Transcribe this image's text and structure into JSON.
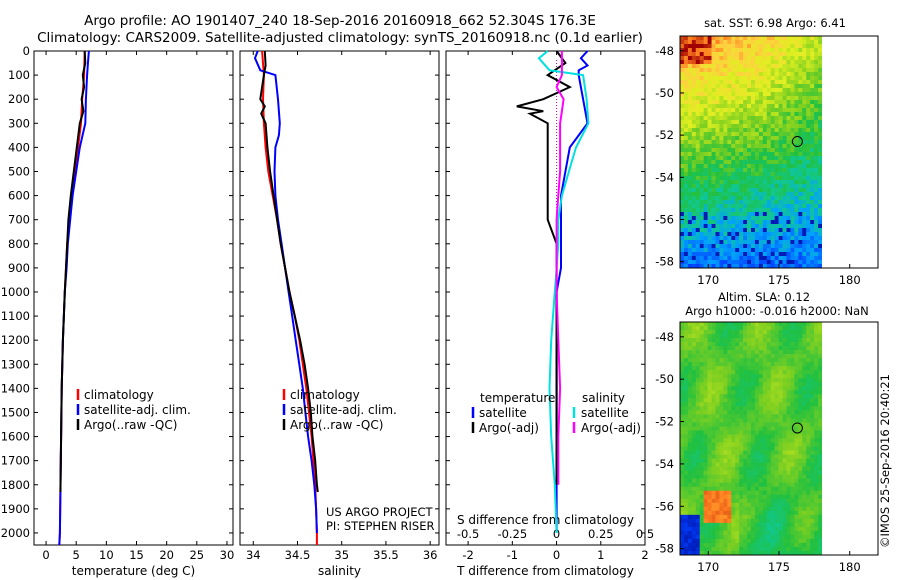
{
  "title": {
    "line1": "Argo profile: AO 1901407_240 18-Sep-2016 20160918_662 52.304S 176.3E",
    "line2": "Climatology: CARS2009. Satellite-adjusted climatology: synTS_20160918.nc (0.1d earlier)"
  },
  "stamp": "©IMOS 25-Sep-2016 20:40:21",
  "colors": {
    "climatology": "#ff0000",
    "satellite": "#0000ff",
    "argo": "#000000",
    "salinity_satellite": "#00e0e0",
    "salinity_argo": "#ff00ff"
  },
  "chart_data": [
    {
      "type": "line",
      "xlabel": "temperature (deg C)",
      "ylabel": "",
      "xlim": [
        -2,
        31
      ],
      "ylim": [
        2050,
        0
      ],
      "xticks": [
        "0",
        "5",
        "10",
        "15",
        "20",
        "25",
        "30"
      ],
      "yticks": [
        "0",
        "100",
        "200",
        "300",
        "400",
        "500",
        "600",
        "700",
        "800",
        "900",
        "1000",
        "1100",
        "1200",
        "1300",
        "1400",
        "1500",
        "1600",
        "1700",
        "1800",
        "1900",
        "2000"
      ],
      "legend": [
        "climatology",
        "satellite-adj. clim.",
        "Argo(..raw -QC)"
      ],
      "legend_position": "middle-right",
      "series": [
        {
          "name": "climatology",
          "depth": [
            0,
            100,
            200,
            300,
            400,
            500,
            600,
            700,
            800,
            900,
            1000,
            1200,
            1400,
            1600,
            1800,
            2000,
            2050
          ],
          "values": [
            6.4,
            6.3,
            6.0,
            5.8,
            5.3,
            4.8,
            4.3,
            3.9,
            3.5,
            3.3,
            3.1,
            2.8,
            2.6,
            2.5,
            2.4,
            2.3,
            2.2
          ]
        },
        {
          "name": "satellite-adj. clim.",
          "depth": [
            0,
            30,
            100,
            200,
            300,
            400,
            500,
            600,
            700,
            800,
            900,
            1000,
            1200,
            1400,
            1600,
            1800,
            2000,
            2050
          ],
          "values": [
            7.1,
            7.0,
            6.8,
            6.6,
            6.5,
            5.6,
            5.0,
            4.4,
            4.0,
            3.6,
            3.4,
            3.1,
            2.8,
            2.6,
            2.5,
            2.4,
            2.3,
            2.2
          ]
        },
        {
          "name": "Argo(..raw -QC)",
          "depth": [
            0,
            50,
            100,
            150,
            200,
            250,
            300,
            400,
            500,
            600,
            700,
            800,
            900,
            1000,
            1200,
            1400,
            1600,
            1800,
            1830
          ],
          "values": [
            6.4,
            6.5,
            6.1,
            6.3,
            5.9,
            6.2,
            5.6,
            5.1,
            4.6,
            4.1,
            3.7,
            3.5,
            3.3,
            3.1,
            2.8,
            2.6,
            2.5,
            2.4,
            2.4
          ]
        }
      ]
    },
    {
      "type": "line",
      "xlabel": "salinity",
      "ylabel": "",
      "xlim": [
        33.85,
        36.1
      ],
      "ylim": [
        2050,
        0
      ],
      "xticks": [
        "34",
        "34.5",
        "35",
        "35.5",
        "36"
      ],
      "legend": [
        "climatology",
        "satellite-adj. clim.",
        "Argo(..raw -QC)"
      ],
      "legend_position": "middle-right",
      "annotation": [
        "US ARGO PROJECT",
        "PI: STEPHEN RISER"
      ],
      "series": [
        {
          "name": "climatology",
          "depth": [
            0,
            100,
            200,
            300,
            400,
            500,
            600,
            700,
            800,
            900,
            1000,
            1100,
            1200,
            1300,
            1400,
            1500,
            1600,
            1700,
            1800,
            1900,
            2000,
            2050
          ],
          "values": [
            34.1,
            34.12,
            34.11,
            34.12,
            34.14,
            34.17,
            34.22,
            34.27,
            34.31,
            34.36,
            34.41,
            34.47,
            34.52,
            34.56,
            34.6,
            34.63,
            34.66,
            34.68,
            34.7,
            34.71,
            34.72,
            34.72
          ]
        },
        {
          "name": "satellite-adj. clim.",
          "depth": [
            0,
            30,
            80,
            100,
            200,
            300,
            350,
            400,
            500,
            600,
            700,
            800,
            900,
            1000,
            1100,
            1200,
            1300,
            1400,
            1500,
            1600,
            1700,
            1800,
            1900,
            2000
          ],
          "values": [
            34.05,
            34.02,
            34.08,
            34.25,
            34.28,
            34.3,
            34.29,
            34.25,
            34.24,
            34.25,
            34.28,
            34.32,
            34.36,
            34.4,
            34.44,
            34.48,
            34.52,
            34.56,
            34.59,
            34.62,
            34.66,
            34.69,
            34.71,
            34.72
          ]
        },
        {
          "name": "Argo(..raw -QC)",
          "depth": [
            0,
            60,
            100,
            150,
            200,
            230,
            260,
            300,
            400,
            500,
            600,
            700,
            800,
            900,
            1000,
            1100,
            1200,
            1300,
            1400,
            1500,
            1600,
            1700,
            1800,
            1830
          ],
          "values": [
            34.13,
            34.14,
            34.12,
            34.1,
            34.08,
            34.13,
            34.09,
            34.14,
            34.16,
            34.19,
            34.23,
            34.27,
            34.31,
            34.36,
            34.41,
            34.47,
            34.53,
            34.58,
            34.62,
            34.65,
            34.67,
            34.7,
            34.72,
            34.73
          ]
        }
      ]
    },
    {
      "type": "line",
      "xlabel": "T difference from climatology",
      "xlabel2": "S difference from climatology",
      "xlim": [
        -2.5,
        2.0
      ],
      "x2lim": [
        -0.625,
        0.5
      ],
      "ylim": [
        2050,
        0
      ],
      "xticks": [
        "-2",
        "-1",
        "0",
        "1",
        "2"
      ],
      "x2ticks": [
        "-0.5",
        "-0.25",
        "0",
        "0.25",
        "0.5"
      ],
      "legend": {
        "temperature_heading": "temperature",
        "salinity_heading": "salinity",
        "temperature": [
          "satellite",
          "Argo(-adj)"
        ],
        "salinity": [
          "satellite",
          "Argo(-adj)"
        ]
      },
      "legend_position": "middle",
      "series": [
        {
          "name": "T satellite",
          "depth": [
            0,
            30,
            60,
            80,
            100,
            200,
            300,
            400,
            500,
            600,
            700,
            800,
            900,
            1000,
            1200,
            1400,
            1600,
            1800,
            2000
          ],
          "values": [
            0.7,
            0.55,
            0.7,
            0.5,
            0.5,
            0.6,
            0.7,
            0.3,
            0.2,
            0.1,
            0.1,
            0.1,
            0.1,
            0.0,
            0.0,
            0.0,
            0.0,
            0.0,
            0.0
          ]
        },
        {
          "name": "T Argo(-adj)",
          "depth": [
            0,
            50,
            100,
            150,
            200,
            230,
            250,
            260,
            300,
            400,
            500,
            600,
            700,
            800,
            900,
            1000,
            1200,
            1400,
            1600,
            1800
          ],
          "values": [
            0.0,
            0.2,
            -0.2,
            0.3,
            -0.3,
            -0.9,
            -0.3,
            -0.6,
            -0.2,
            -0.2,
            -0.2,
            -0.2,
            -0.2,
            0.0,
            0.0,
            0.0,
            0.0,
            0.0,
            0.0,
            0.0
          ]
        },
        {
          "name": "S satellite",
          "depth": [
            0,
            30,
            80,
            100,
            200,
            300,
            400,
            500,
            600,
            700,
            800,
            900,
            1000,
            1100,
            1200,
            1400,
            1600,
            1800,
            2000
          ],
          "values": [
            -0.05,
            -0.1,
            -0.04,
            0.15,
            0.17,
            0.18,
            0.11,
            0.07,
            0.03,
            0.01,
            0.01,
            0.0,
            -0.01,
            -0.02,
            -0.03,
            -0.04,
            -0.03,
            -0.01,
            0.0
          ]
        },
        {
          "name": "S Argo(-adj)",
          "depth": [
            0,
            100,
            150,
            200,
            250,
            300,
            400,
            500,
            600,
            700,
            800,
            900,
            1000,
            1200,
            1400,
            1600,
            1800
          ],
          "values": [
            0.03,
            0.03,
            0.0,
            0.04,
            0.03,
            0.02,
            0.02,
            0.02,
            0.01,
            0.0,
            0.0,
            0.0,
            0.0,
            0.01,
            0.02,
            0.01,
            0.01
          ]
        }
      ]
    },
    {
      "type": "heatmap",
      "title": "sat. SST: 6.98 Argo: 6.41",
      "xlim": [
        168,
        182
      ],
      "ylim": [
        -58.3,
        -47.3
      ],
      "xticks": [
        "170",
        "175",
        "180"
      ],
      "yticks": [
        "-48",
        "-50",
        "-52",
        "-54",
        "-56",
        "-58"
      ],
      "marker": {
        "lon": 176.3,
        "lat": -52.304
      }
    },
    {
      "type": "heatmap",
      "title": "Altim. SLA: 0.12",
      "subtitle": "Argo h1000: -0.016 h2000: NaN",
      "xlim": [
        168,
        182
      ],
      "ylim": [
        -58.3,
        -47.3
      ],
      "xticks": [
        "170",
        "175",
        "180"
      ],
      "yticks": [
        "-48",
        "-50",
        "-52",
        "-54",
        "-56",
        "-58"
      ],
      "marker": {
        "lon": 176.3,
        "lat": -52.304
      }
    }
  ]
}
